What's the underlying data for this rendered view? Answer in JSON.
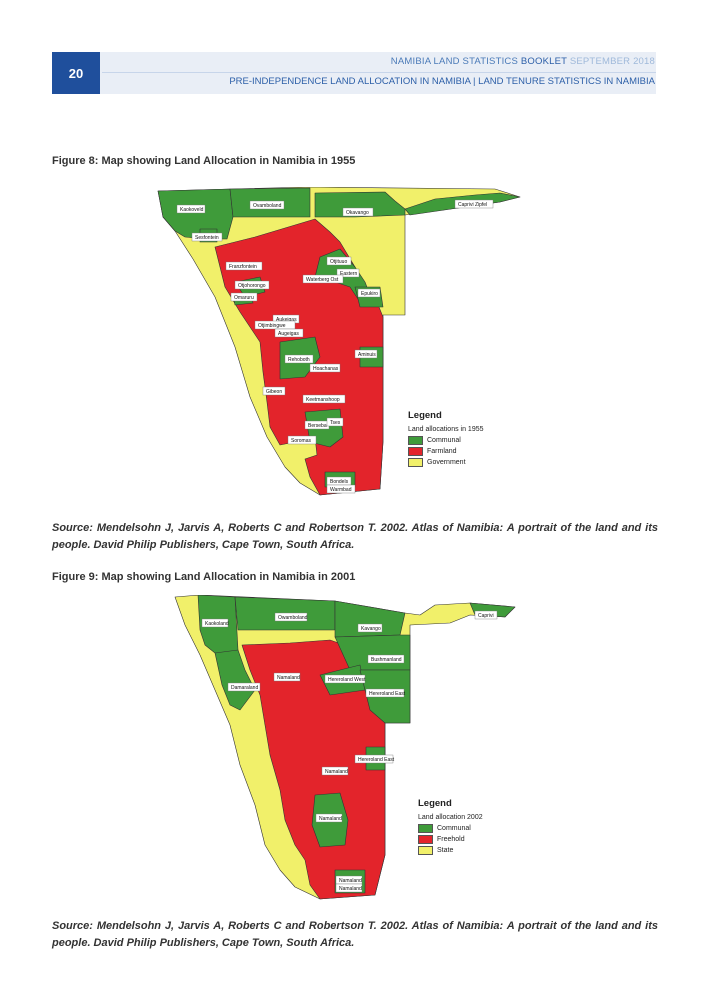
{
  "header": {
    "page_number": "20",
    "booklet_title": "NAMIBIA LAND STATISTICS",
    "booklet_word": "BOOKLET",
    "booklet_date": "SEPTEMBER 2018",
    "subtitle": "PRE-INDEPENDENCE LAND ALLOCATION IN NAMIBIA | LAND TENURE STATISTICS IN NAMIBIA"
  },
  "colors": {
    "header_blue": "#1f4f9c",
    "communal_green": "#3f9b3a",
    "farmland_red": "#e3242b",
    "government_yellow": "#f1f06a"
  },
  "figure1": {
    "caption": "Figure 8: Map showing Land Allocation in Namibia in 1955",
    "labels": {
      "kaokoveld": "Kaokoveld",
      "ovamboland": "Ovamboland",
      "okavango": "Okavango",
      "caprivi": "Caprivi Zipfel",
      "sesfontein": "Sesfontein",
      "franzfontein": "Franzfontein",
      "otjituuo": "Otjituuo",
      "eastern": "Eastern",
      "waterberg": "Waterberg Ost",
      "otjohorongo": "Otjohorongo",
      "omaruru": "Omaruru",
      "epukiro": "Epukiro",
      "aukeigas": "Aukeigas",
      "otjimbingwe": "Otjimbingwe",
      "augeigas2": "Augeigas",
      "rehoboth": "Rehoboth",
      "aminuis": "Aminuis",
      "hoachanas": "Hoachanas",
      "gibeon": "Gibeon",
      "keetmanshoop": "Keetmanshoop",
      "berseba": "Berseba",
      "tses": "Tses",
      "soromas": "Soromas",
      "bondels": "Bondels",
      "warmbad": "Warmbad"
    },
    "legend": {
      "title": "Legend",
      "subtitle": "Land allocations in 1955",
      "items": [
        {
          "label": "Communal",
          "color": "#3f9b3a"
        },
        {
          "label": "Farmland",
          "color": "#e3242b"
        },
        {
          "label": "Government",
          "color": "#f1f06a"
        }
      ]
    },
    "source": "Source: Mendelsohn J, Jarvis A, Roberts C and Robertson T. 2002. Atlas of Namibia: A portrait of the land and its people. David Philip Publishers, Cape Town, South Africa."
  },
  "figure2": {
    "caption": "Figure 9: Map showing Land Allocation in Namibia in 2001",
    "labels": {
      "kaokoland": "Kaokoland",
      "owamboland": "Owamboland",
      "kavango": "Kavango",
      "caprivi": "Caprivi",
      "bushmanland": "Bushmanland",
      "damaraland": "Damaraland",
      "namaland_n": "Namaland",
      "hereroland_west": "Hereroland West",
      "hereroland_east": "Hereroland East",
      "hereroland_east2": "Hereroland East",
      "namaland_c": "Namaland",
      "namaland_s": "Namaland",
      "namaland_ss": "Namaland",
      "namaland_sss": "Namaland"
    },
    "legend": {
      "title": "Legend",
      "subtitle": "Land allocation 2002",
      "items": [
        {
          "label": "Communal",
          "color": "#3f9b3a"
        },
        {
          "label": "Freehold",
          "color": "#e3242b"
        },
        {
          "label": "State",
          "color": "#f1f06a"
        }
      ]
    },
    "source": "Source: Mendelsohn J, Jarvis A, Roberts C and Robertson T. 2002. Atlas of Namibia: A portrait of the land and its people. David Philip Publishers, Cape Town, South Africa."
  }
}
